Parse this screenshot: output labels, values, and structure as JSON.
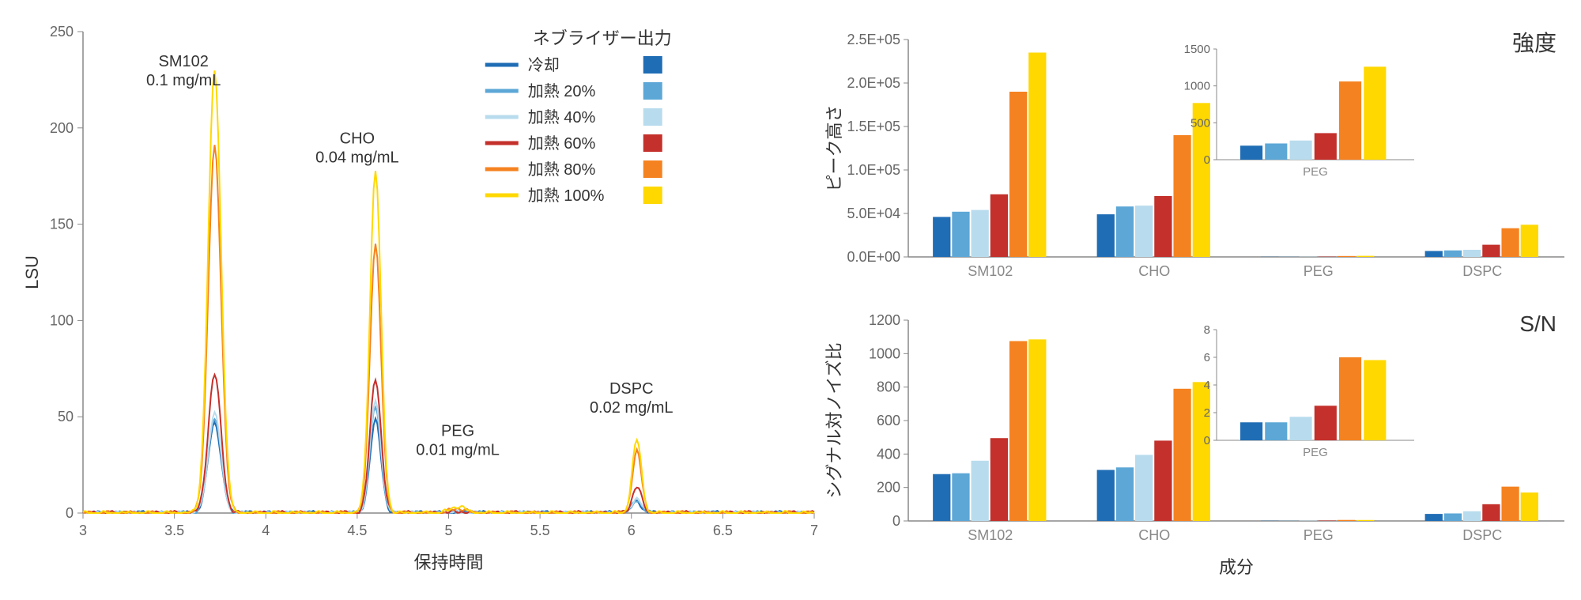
{
  "colors": {
    "series": [
      "#1f6db5",
      "#5ca7d6",
      "#b8dced",
      "#c4302b",
      "#f58220",
      "#ffd800"
    ],
    "axis": "#888888",
    "grid": "#e8e8e8",
    "text": "#333333",
    "tick": "#666666"
  },
  "legend": {
    "title": "ネブライザー出力",
    "items": [
      "冷却",
      "加熱 20%",
      "加熱 40%",
      "加熱 60%",
      "加熱 80%",
      "加熱 100%"
    ]
  },
  "chromatogram": {
    "xlabel": "保持時間",
    "ylabel": "LSU",
    "xlim": [
      3,
      7
    ],
    "ylim": [
      0,
      250
    ],
    "xticks": [
      3,
      3.5,
      4,
      4.5,
      5,
      5.5,
      6,
      6.5,
      7
    ],
    "yticks": [
      0,
      50,
      100,
      150,
      200,
      250
    ],
    "peaks": [
      {
        "name": "SM102",
        "conc": "0.1 mg/mL",
        "rt": 3.72,
        "width": 0.07,
        "heights": [
          47,
          50,
          52,
          72,
          190,
          230
        ]
      },
      {
        "name": "CHO",
        "conc": "0.04 mg/mL",
        "rt": 4.6,
        "width": 0.06,
        "heights": [
          48,
          55,
          58,
          70,
          140,
          178
        ]
      },
      {
        "name": "PEG",
        "conc": "0.01 mg/mL",
        "rt": 5.05,
        "width": 0.08,
        "heights": [
          0.3,
          0.4,
          0.5,
          0.8,
          2.5,
          3.5
        ]
      },
      {
        "name": "DSPC",
        "conc": "0.02 mg/mL",
        "rt": 6.03,
        "width": 0.05,
        "heights": [
          6,
          7,
          8,
          14,
          32,
          38
        ]
      }
    ],
    "noise_amp": 2
  },
  "bar_intensity": {
    "title": "強度",
    "ylabel": "ピーク高さ",
    "ylim": [
      0,
      250000
    ],
    "yticks": [
      0,
      50000,
      100000,
      150000,
      200000,
      250000
    ],
    "ytick_labels": [
      "0.0E+00",
      "5.0E+04",
      "1.0E+05",
      "1.5E+05",
      "2.0E+05",
      "2.5E+05"
    ],
    "categories": [
      "SM102",
      "CHO",
      "PEG",
      "DSPC"
    ],
    "data": [
      [
        46000,
        52000,
        54000,
        72000,
        190000,
        235000
      ],
      [
        49000,
        58000,
        59000,
        70000,
        140000,
        177000
      ],
      [
        190,
        220,
        260,
        360,
        1060,
        1260
      ],
      [
        6800,
        7500,
        8200,
        14000,
        33000,
        37000
      ]
    ],
    "inset": {
      "category": "PEG",
      "ylim": [
        0,
        1500
      ],
      "yticks": [
        0,
        500,
        1000,
        1500
      ],
      "data": [
        190,
        220,
        260,
        360,
        1060,
        1260
      ]
    }
  },
  "bar_sn": {
    "title": "S/N",
    "ylabel": "シグナル対ノイズ比",
    "xlabel": "成分",
    "ylim": [
      0,
      1200
    ],
    "yticks": [
      0,
      200,
      400,
      600,
      800,
      1000,
      1200
    ],
    "categories": [
      "SM102",
      "CHO",
      "PEG",
      "DSPC"
    ],
    "data": [
      [
        280,
        285,
        360,
        495,
        1075,
        1085
      ],
      [
        305,
        320,
        395,
        480,
        790,
        830
      ],
      [
        1.3,
        1.3,
        1.7,
        2.5,
        6.0,
        5.8
      ],
      [
        42,
        45,
        58,
        100,
        205,
        170
      ]
    ],
    "inset": {
      "category": "PEG",
      "ylim": [
        0,
        8
      ],
      "yticks": [
        0,
        2,
        4,
        6,
        8
      ],
      "data": [
        1.3,
        1.3,
        1.7,
        2.5,
        6.0,
        5.8
      ]
    }
  }
}
